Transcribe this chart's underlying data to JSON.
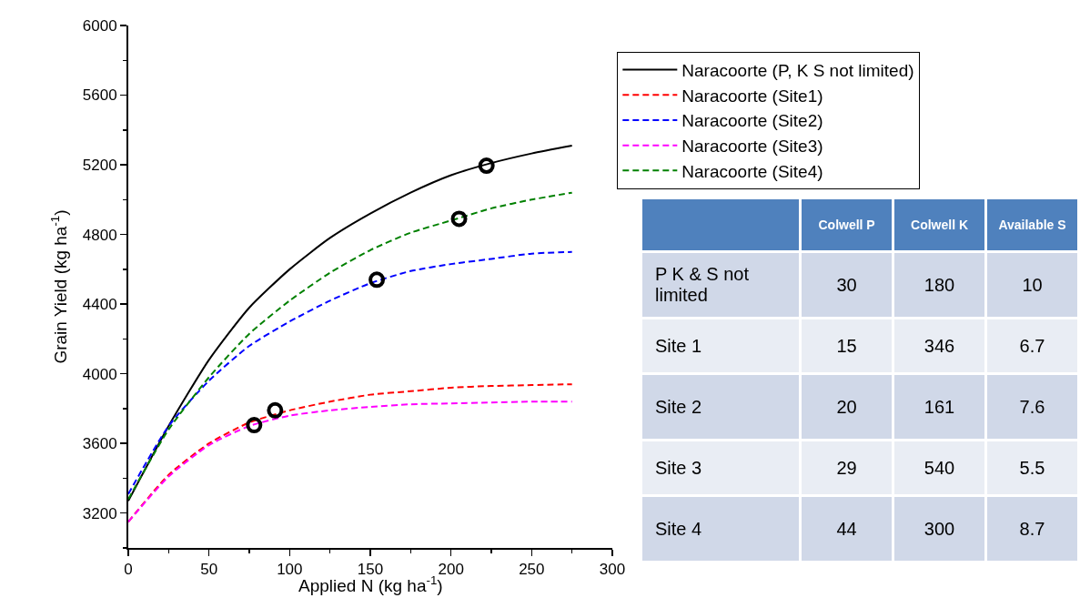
{
  "chart_data": [
    {
      "type": "line",
      "xlabel": "Applied N (kg ha$^{-1}$)",
      "ylabel": "Grain Yield (kg ha$^{-1}$)",
      "xlim": [
        0,
        300
      ],
      "xticks": [
        0,
        50,
        100,
        150,
        200,
        250,
        300
      ],
      "ylim": [
        3000,
        6000
      ],
      "yticks": [
        3200,
        3600,
        4000,
        4400,
        4800,
        5200,
        5600,
        6000
      ],
      "legend": "top right",
      "marker": "none",
      "x": [
        0,
        25,
        50,
        75,
        100,
        125,
        150,
        175,
        200,
        225,
        250,
        275
      ],
      "series": [
        {
          "name": "Naracoorte (P, K S not limited)",
          "color": "#000000",
          "line_style": "solid",
          "values": [
            3270,
            3700,
            4080,
            4380,
            4600,
            4780,
            4920,
            5040,
            5140,
            5210,
            5265,
            5310
          ]
        },
        {
          "name": "Naracoorte (Site1)",
          "color": "#ff0000",
          "line_style": "dashed",
          "values": [
            3150,
            3420,
            3600,
            3720,
            3790,
            3840,
            3880,
            3900,
            3920,
            3930,
            3935,
            3940
          ]
        },
        {
          "name": "Naracoorte (Site2)",
          "color": "#0000ff",
          "line_style": "dashed",
          "values": [
            3310,
            3700,
            3960,
            4160,
            4300,
            4420,
            4520,
            4590,
            4630,
            4660,
            4690,
            4700
          ]
        },
        {
          "name": "Naracoorte (Site3)",
          "color": "#ff00ff",
          "line_style": "dashed",
          "values": [
            3150,
            3410,
            3590,
            3700,
            3760,
            3790,
            3810,
            3825,
            3830,
            3835,
            3840,
            3840
          ]
        },
        {
          "name": "Naracoorte (Site4)",
          "color": "#008000",
          "line_style": "dashed",
          "values": [
            3280,
            3680,
            3980,
            4230,
            4420,
            4580,
            4710,
            4810,
            4880,
            4950,
            5000,
            5040
          ]
        },
        {
          "type": "scatter",
          "color": "#000000",
          "marker": "circle",
          "x": [
            78,
            91,
            154,
            205,
            222
          ],
          "values": [
            3705,
            3790,
            4540,
            4890,
            5195
          ]
        }
      ]
    },
    {
      "type": "other",
      "categories": [
        "Colwell P",
        "Colwell K",
        "Available S"
      ],
      "y_categories": [
        "P K & S not limited",
        "Site 1",
        "Site 2",
        "Site 3",
        "Site 4"
      ],
      "cell_labels": [
        [
          "30",
          "180",
          "10"
        ],
        [
          "15",
          "346",
          "6.7"
        ],
        [
          "20",
          "161",
          "7.6"
        ],
        [
          "29",
          "540",
          "5.5"
        ],
        [
          "44",
          "300",
          "8.7"
        ]
      ]
    }
  ]
}
